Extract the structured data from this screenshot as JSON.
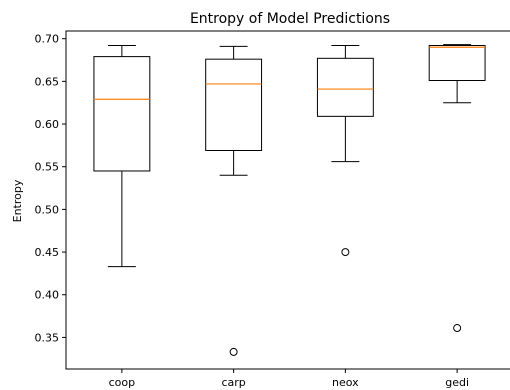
{
  "chart_data": {
    "type": "boxplot",
    "title": "Entropy of Model Predictions",
    "xlabel": "",
    "ylabel": "Entropy",
    "categories": [
      "coop",
      "carp",
      "neox",
      "gedi"
    ],
    "ylim": [
      0.313,
      0.709
    ],
    "yticks": [
      "0.35",
      "0.40",
      "0.45",
      "0.50",
      "0.55",
      "0.60",
      "0.65",
      "0.70"
    ],
    "grid": false,
    "boxes": [
      {
        "name": "coop",
        "whisker_low": 0.433,
        "q1": 0.545,
        "median": 0.629,
        "q3": 0.679,
        "whisker_high": 0.692,
        "outliers": []
      },
      {
        "name": "carp",
        "whisker_low": 0.54,
        "q1": 0.569,
        "median": 0.647,
        "q3": 0.676,
        "whisker_high": 0.691,
        "outliers": [
          0.333
        ]
      },
      {
        "name": "neox",
        "whisker_low": 0.556,
        "q1": 0.609,
        "median": 0.641,
        "q3": 0.677,
        "whisker_high": 0.692,
        "outliers": [
          0.45
        ]
      },
      {
        "name": "gedi",
        "whisker_low": 0.625,
        "q1": 0.651,
        "median": 0.69,
        "q3": 0.692,
        "whisker_high": 0.693,
        "outliers": [
          0.361
        ]
      }
    ],
    "colors": {
      "box": "#000000",
      "median": "#ff7f0e",
      "outlier": "#000000"
    }
  }
}
